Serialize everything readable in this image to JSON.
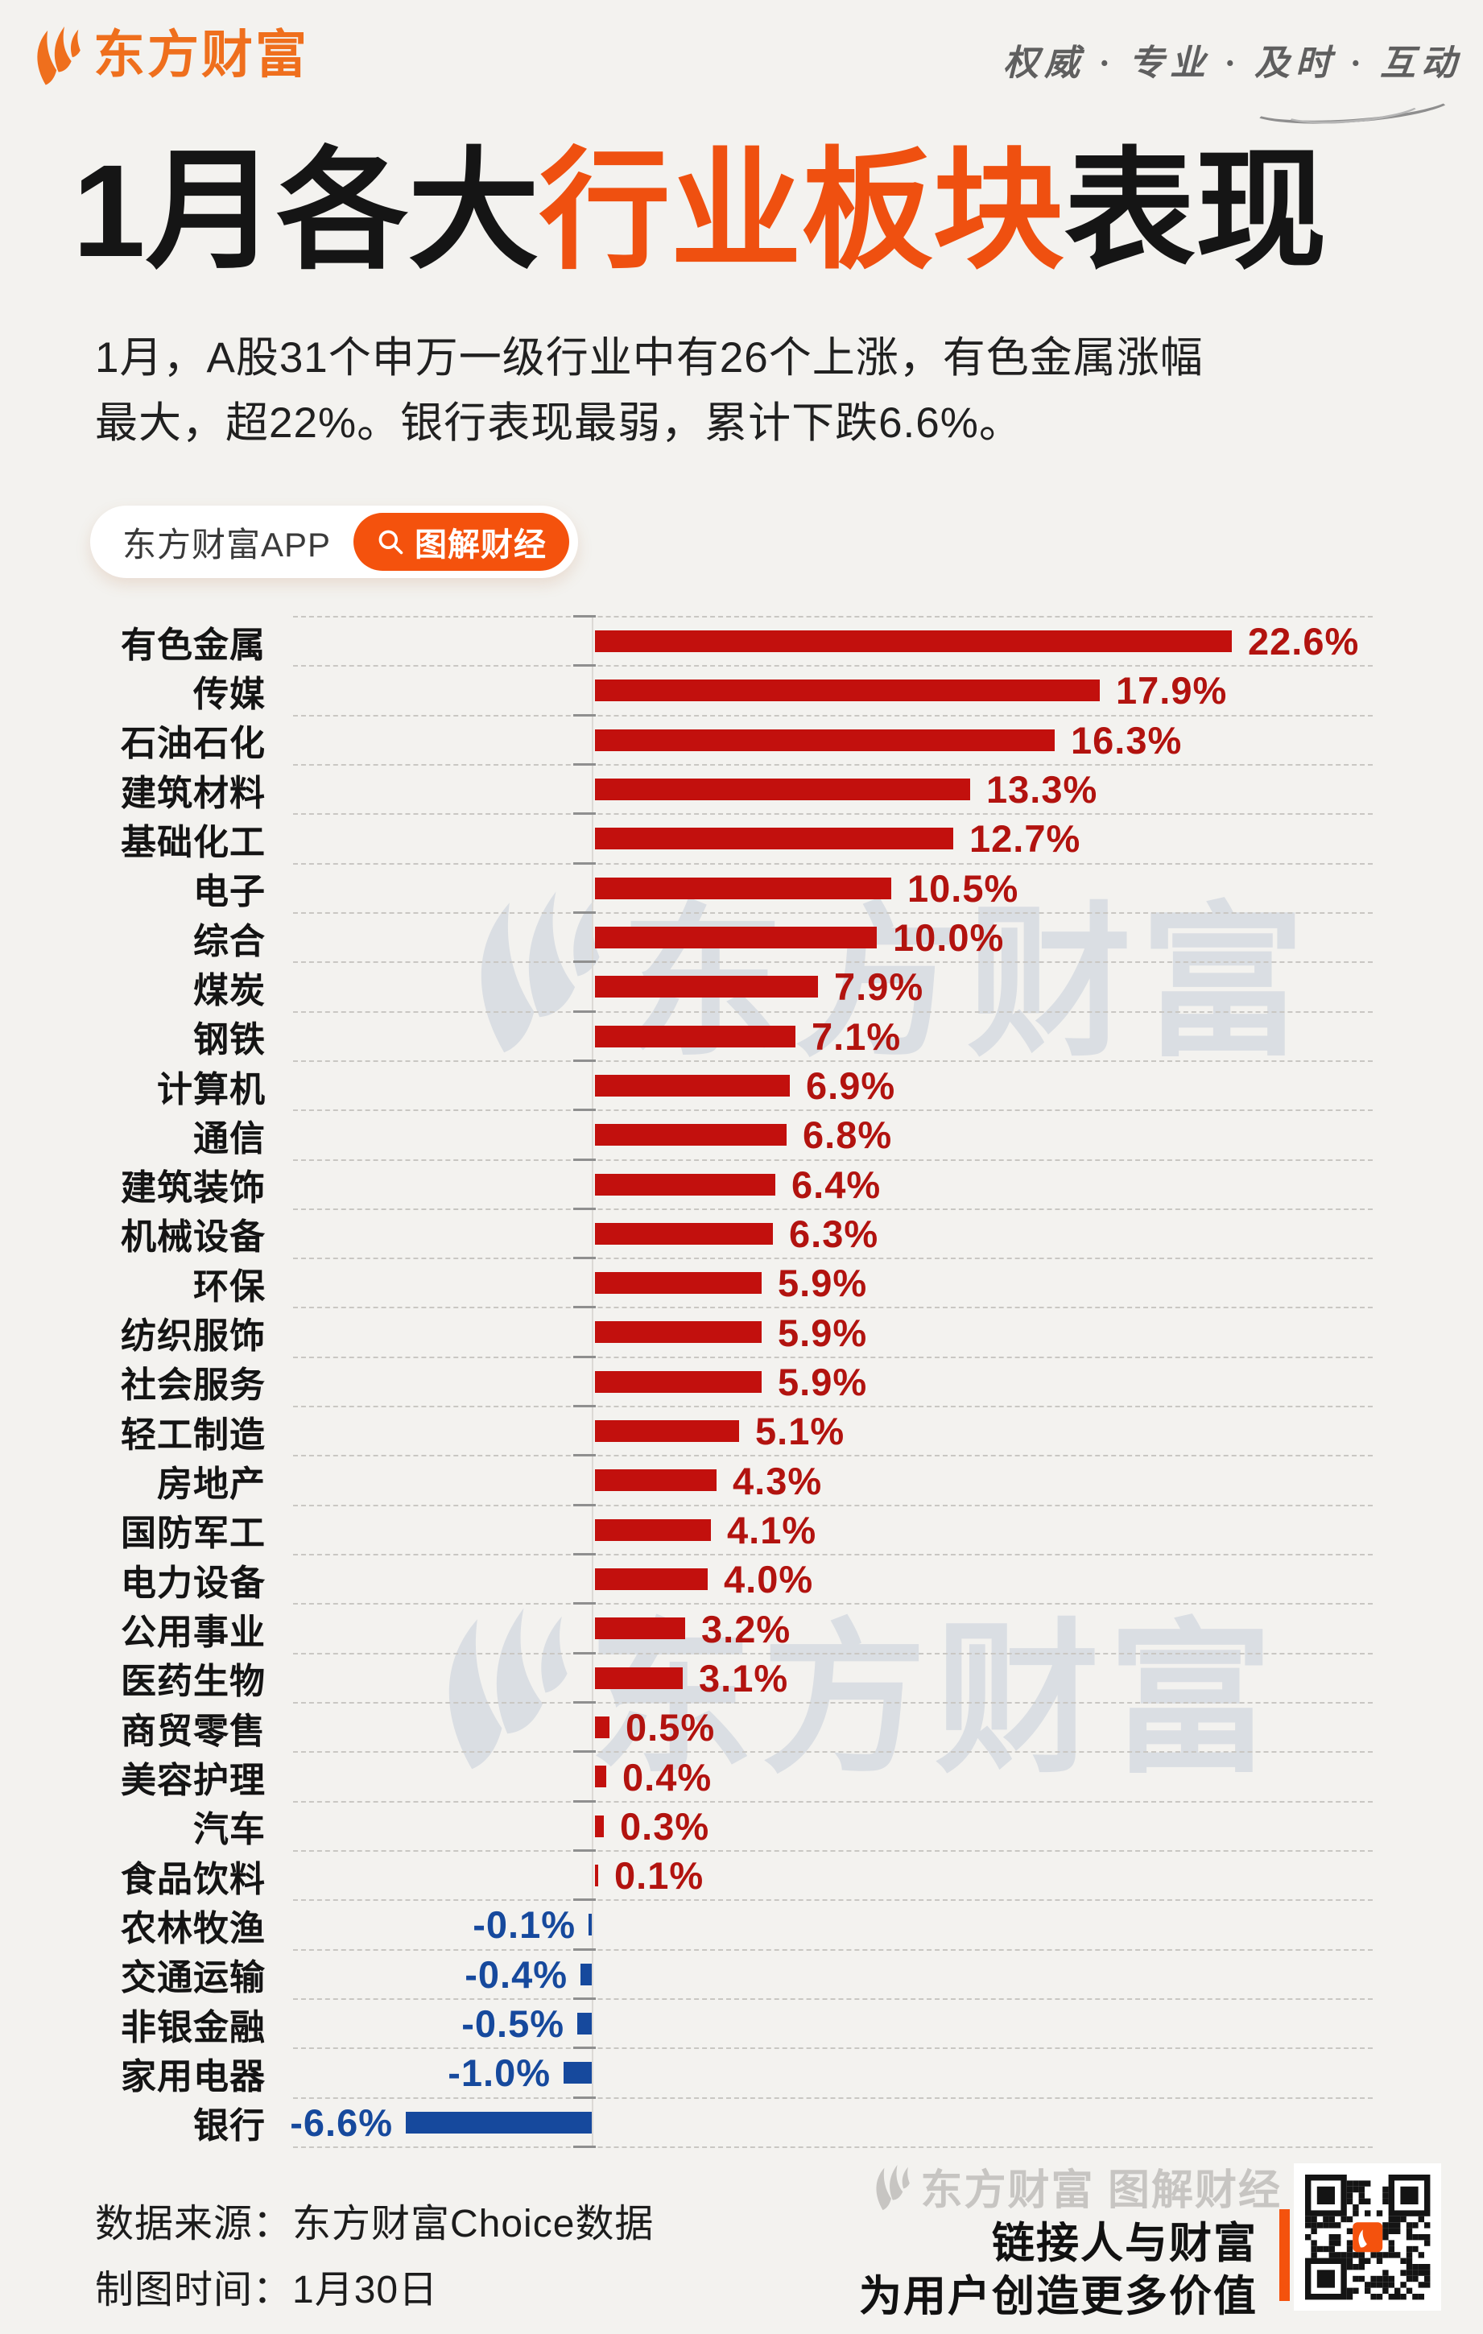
{
  "header": {
    "brand": {
      "logo_icon": "eastmoney-swoosh-icon",
      "name": "东方财富"
    },
    "tagline": "权威 · 专业 · 及时 · 互动"
  },
  "title": {
    "prefix": "1月各大",
    "highlight": "行业板块",
    "suffix": "表现"
  },
  "intro": "1月，A股31个申万一级行业中有26个上涨，有色金属涨幅\n最大，超22%。银行表现最弱，累计下跌6.6%。",
  "badge": {
    "app_label": "东方财富APP",
    "search_icon": "search-icon",
    "cta_label": "图解财经"
  },
  "watermark_text": "东方财富",
  "chart_data": {
    "type": "bar",
    "orientation": "horizontal",
    "value_unit": "%",
    "title": "1月各大行业板块表现",
    "categories": [
      "有色金属",
      "传媒",
      "石油石化",
      "建筑材料",
      "基础化工",
      "电子",
      "综合",
      "煤炭",
      "钢铁",
      "计算机",
      "通信",
      "建筑装饰",
      "机械设备",
      "环保",
      "纺织服饰",
      "社会服务",
      "轻工制造",
      "房地产",
      "国防军工",
      "电力设备",
      "公用事业",
      "医药生物",
      "商贸零售",
      "美容护理",
      "汽车",
      "食品饮料",
      "农林牧渔",
      "交通运输",
      "非银金融",
      "家用电器",
      "银行"
    ],
    "values": [
      22.6,
      17.9,
      16.3,
      13.3,
      12.7,
      10.5,
      10.0,
      7.9,
      7.1,
      6.9,
      6.8,
      6.4,
      6.3,
      5.9,
      5.9,
      5.9,
      5.1,
      4.3,
      4.1,
      4.0,
      3.2,
      3.1,
      0.5,
      0.4,
      0.3,
      0.1,
      -0.1,
      -0.4,
      -0.5,
      -1.0,
      -6.6
    ],
    "labels": [
      "22.6%",
      "17.9%",
      "16.3%",
      "13.3%",
      "12.7%",
      "10.5%",
      "10.0%",
      "7.9%",
      "7.1%",
      "6.9%",
      "6.8%",
      "6.4%",
      "6.3%",
      "5.9%",
      "5.9%",
      "5.9%",
      "5.1%",
      "4.3%",
      "4.1%",
      "4.0%",
      "3.2%",
      "3.1%",
      "0.5%",
      "0.4%",
      "0.3%",
      "0.1%",
      "-0.1%",
      "-0.4%",
      "-0.5%",
      "-1.0%",
      "-6.6%"
    ],
    "xlim": [
      -6.6,
      22.6
    ],
    "grid": "dashed horizontal row separators",
    "legend_position": "none"
  },
  "colors": {
    "background": "#f3f2ef",
    "brand_orange": "#ef6f1d",
    "title_accent": "#ef5010",
    "badge_orange": "#f4520d",
    "bar_positive": "#c2100d",
    "bar_negative": "#16499d",
    "value_positive_text": "#b2130f",
    "value_negative_text": "#16499d"
  },
  "footer": {
    "source_line": "数据来源：东方财富Choice数据",
    "date_line": "制图时间：1月30日",
    "watermark": "东方财富 图解财经",
    "slogan_line1": "链接人与财富",
    "slogan_line2": "为用户创造更多价值",
    "qr_icon": "qr-code"
  }
}
